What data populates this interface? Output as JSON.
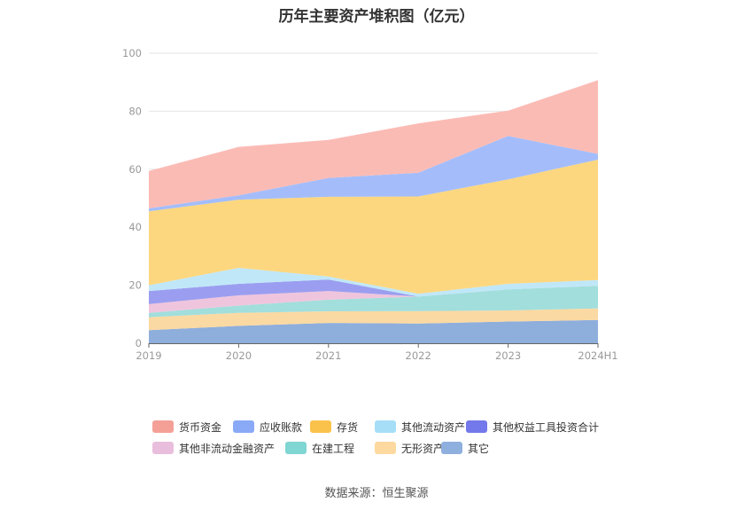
{
  "title": "历年主要资产堆积图（亿元）",
  "source": "数据来源：恒生聚源",
  "chart_data": {
    "type": "area",
    "stacked": true,
    "categories": [
      "2019",
      "2020",
      "2021",
      "2022",
      "2023",
      "2024H1"
    ],
    "y_ticks": [
      "0",
      "20",
      "40",
      "60",
      "80",
      "100"
    ],
    "ylim": [
      0,
      100
    ],
    "grid": true,
    "legend_position": "bottom",
    "series": [
      {
        "name": "其它",
        "color": "#8eaedc",
        "values": [
          4.5,
          6.0,
          7.0,
          6.8,
          7.5,
          8.0
        ]
      },
      {
        "name": "无形资产",
        "color": "#fbd9a2",
        "values": [
          4.5,
          4.5,
          4.0,
          4.3,
          3.8,
          4.0
        ]
      },
      {
        "name": "在建工程",
        "color": "#a2dedc",
        "values": [
          1.5,
          2.5,
          4.0,
          5.0,
          7.3,
          7.8
        ]
      },
      {
        "name": "其他非流动金融资产",
        "color": "#efc5dd",
        "values": [
          3.0,
          3.5,
          3.0,
          0.0,
          0.0,
          0.0
        ]
      },
      {
        "name": "其他权益工具投资合计",
        "color": "#9b9ef0",
        "values": [
          4.5,
          4.0,
          4.0,
          0.0,
          0.0,
          0.0
        ]
      },
      {
        "name": "其他流动资产",
        "color": "#c0e7f8",
        "values": [
          2.0,
          5.5,
          1.0,
          1.0,
          1.9,
          2.0
        ]
      },
      {
        "name": "存货",
        "color": "#fdd77f",
        "values": [
          25.5,
          23.5,
          27.5,
          33.5,
          36.0,
          41.5
        ]
      },
      {
        "name": "应收账款",
        "color": "#a4bdfa",
        "values": [
          1.0,
          1.5,
          6.5,
          8.2,
          15.0,
          2.0
        ]
      },
      {
        "name": "货币资金",
        "color": "#fbbbb5",
        "values": [
          12.9,
          16.7,
          13.1,
          17.0,
          8.7,
          25.4
        ]
      }
    ]
  },
  "legend": [
    {
      "label": "货币资金",
      "color": "#f4a097"
    },
    {
      "label": "应收账款",
      "color": "#8aa9f7"
    },
    {
      "label": "存货",
      "color": "#fbc24b"
    },
    {
      "label": "其他流动资产",
      "color": "#a6def7"
    },
    {
      "label": "其他权益工具投资合计",
      "color": "#7378ea"
    },
    {
      "label": "其他非流动金融资产",
      "color": "#e9bedc"
    },
    {
      "label": "在建工程",
      "color": "#80d6d3"
    },
    {
      "label": "无形资产",
      "color": "#fdd9a0"
    },
    {
      "label": "其它",
      "color": "#8fb0de"
    }
  ]
}
